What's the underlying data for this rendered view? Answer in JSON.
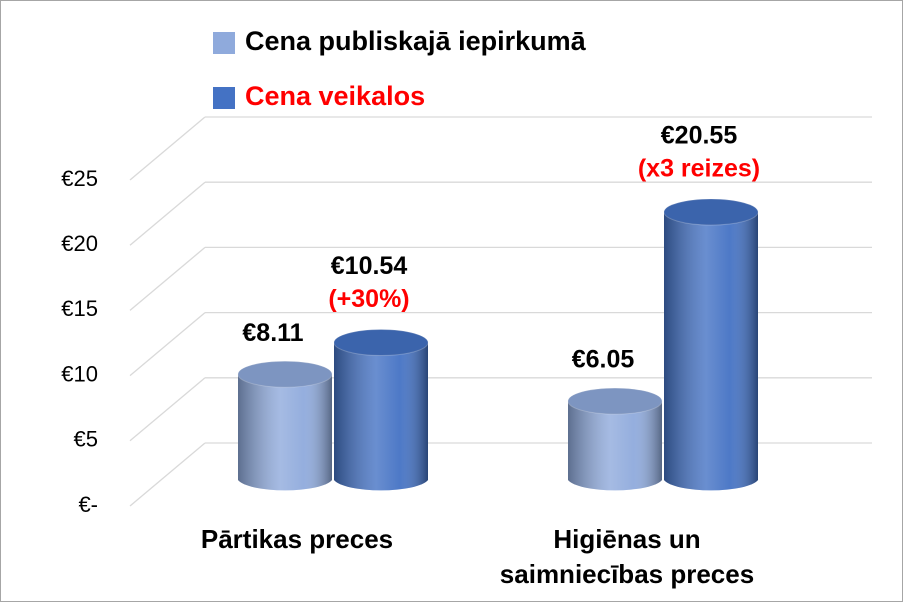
{
  "chart_data": {
    "type": "bar3d",
    "categories": [
      "Pārtikas preces",
      "Higiēnas un saimniecības preces"
    ],
    "series": [
      {
        "name": "Cena publiskajā iepirkumā",
        "color": "#8faadc",
        "values": [
          8.11,
          6.05
        ],
        "value_labels": [
          "€8.11",
          "€6.05"
        ]
      },
      {
        "name": "Cena veikalos",
        "color": "#4472c4",
        "values": [
          10.54,
          20.55
        ],
        "value_labels": [
          "€10.54",
          "€20.55"
        ],
        "annotations": [
          "(+30%)",
          "(x3 reizes)"
        ]
      }
    ],
    "legend_colors": [
      "#000000",
      "#ff0000"
    ],
    "annotation_color": "#ff0000",
    "ylim": [
      0,
      25
    ],
    "yticks": [
      {
        "value": 0,
        "label": "€-"
      },
      {
        "value": 5,
        "label": "€5"
      },
      {
        "value": 10,
        "label": "€10"
      },
      {
        "value": 15,
        "label": "€15"
      },
      {
        "value": 20,
        "label": "€20"
      },
      {
        "value": 25,
        "label": "€25"
      }
    ],
    "grid": true
  }
}
